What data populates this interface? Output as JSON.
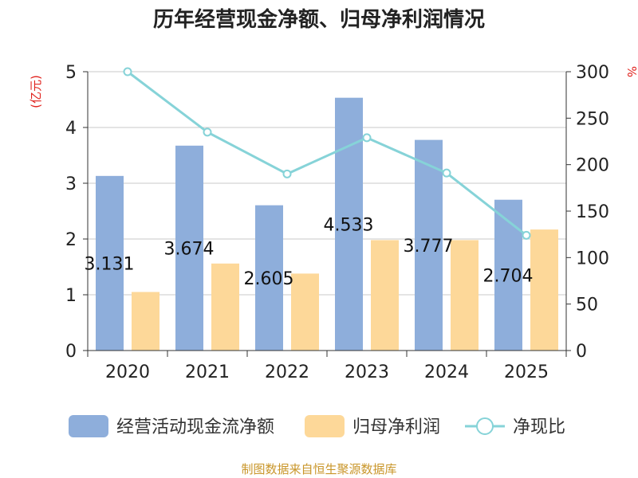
{
  "chart_data": {
    "type": "bar",
    "title": "历年经营现金净额、归母净利润情况",
    "source": "制图数据来自恒生聚源数据库",
    "ylabel_left": "(亿元)",
    "ylabel_right": "%",
    "categories": [
      "2020",
      "2021",
      "2022",
      "2023",
      "2024",
      "2025"
    ],
    "ylim_left": [
      0,
      5
    ],
    "yticks_left": [
      "0",
      "1",
      "2",
      "3",
      "4",
      "5"
    ],
    "ylim_right": [
      0,
      300
    ],
    "yticks_right": [
      "0",
      "50",
      "100",
      "150",
      "200",
      "250",
      "300"
    ],
    "grid": true,
    "legend_position": "bottom",
    "series": [
      {
        "name": "经营活动现金流净额",
        "type": "bar",
        "axis": "left",
        "color": "#8eaedb",
        "values": [
          3.131,
          3.674,
          2.605,
          4.533,
          3.777,
          2.704
        ],
        "data_labels": [
          "3.131",
          "3.674",
          "2.605",
          "4.533",
          "3.777",
          "2.704"
        ]
      },
      {
        "name": "归母净利润",
        "type": "bar",
        "axis": "left",
        "color": "#fdd899",
        "values": [
          1.05,
          1.56,
          1.38,
          1.98,
          1.98,
          2.17
        ]
      },
      {
        "name": "净现比",
        "type": "line",
        "axis": "right",
        "color": "#86d3d8",
        "values": [
          300,
          235,
          190,
          229,
          191,
          124
        ]
      }
    ]
  }
}
